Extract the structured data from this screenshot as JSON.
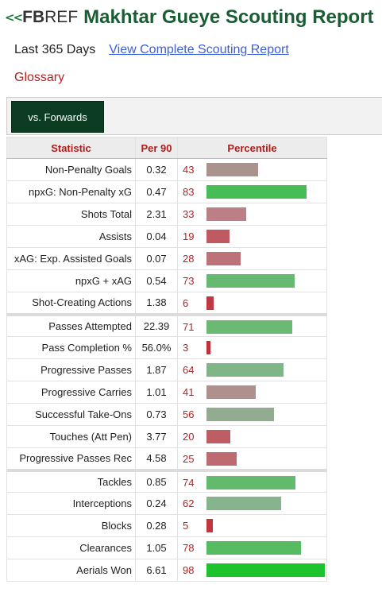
{
  "header": {
    "logo_fb": "FB",
    "logo_ref": "REF",
    "title": "Makhtar Gueye Scouting Report"
  },
  "sub": {
    "period": "Last 365 Days",
    "link": "View Complete Scouting Report",
    "glossary": "Glossary"
  },
  "tabs": [
    {
      "label": "vs. Forwards",
      "active": true
    }
  ],
  "table": {
    "headers": [
      "Statistic",
      "Per 90",
      "Percentile"
    ],
    "rows": [
      {
        "stat": "Non-Penalty Goals",
        "per90": "0.32",
        "pct": 43
      },
      {
        "stat": "npxG: Non-Penalty xG",
        "per90": "0.47",
        "pct": 83
      },
      {
        "stat": "Shots Total",
        "per90": "2.31",
        "pct": 33
      },
      {
        "stat": "Assists",
        "per90": "0.04",
        "pct": 19
      },
      {
        "stat": "xAG: Exp. Assisted Goals",
        "per90": "0.07",
        "pct": 28
      },
      {
        "stat": "npxG + xAG",
        "per90": "0.54",
        "pct": 73
      },
      {
        "stat": "Shot-Creating Actions",
        "per90": "1.38",
        "pct": 6
      },
      {
        "stat": "Passes Attempted",
        "per90": "22.39",
        "pct": 71,
        "group_start": true
      },
      {
        "stat": "Pass Completion %",
        "per90": "56.0%",
        "pct": 3
      },
      {
        "stat": "Progressive Passes",
        "per90": "1.87",
        "pct": 64
      },
      {
        "stat": "Progressive Carries",
        "per90": "1.01",
        "pct": 41
      },
      {
        "stat": "Successful Take-Ons",
        "per90": "0.73",
        "pct": 56
      },
      {
        "stat": "Touches (Att Pen)",
        "per90": "3.77",
        "pct": 20
      },
      {
        "stat": "Progressive Passes Rec",
        "per90": "4.58",
        "pct": 25
      },
      {
        "stat": "Tackles",
        "per90": "0.85",
        "pct": 74,
        "group_start": true
      },
      {
        "stat": "Interceptions",
        "per90": "0.24",
        "pct": 62
      },
      {
        "stat": "Blocks",
        "per90": "0.28",
        "pct": 5
      },
      {
        "stat": "Clearances",
        "per90": "1.05",
        "pct": 78
      },
      {
        "stat": "Aerials Won",
        "per90": "6.61",
        "pct": 98
      }
    ]
  },
  "colors": {
    "title": "#1a5c33",
    "tab": "#0c3d22",
    "percentile_text": "#b82020",
    "bar_high": "#1db954",
    "bar_low": "#c0392b"
  }
}
